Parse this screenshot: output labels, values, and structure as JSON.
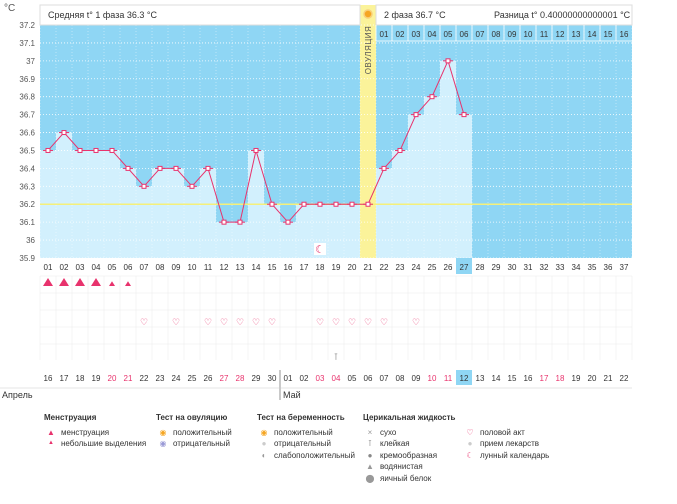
{
  "chart_data": {
    "type": "line",
    "ylabel": "°C",
    "ylim": [
      35.9,
      37.2
    ],
    "yticks": [
      "37.2",
      "37.1",
      "37",
      "36.9",
      "36.8",
      "36.7",
      "36.6",
      "36.5",
      "36.4",
      "36.3",
      "36.2",
      "36.1",
      "36",
      "35.9"
    ],
    "cycle_days": [
      "01",
      "02",
      "03",
      "04",
      "05",
      "06",
      "07",
      "08",
      "09",
      "10",
      "11",
      "12",
      "13",
      "14",
      "15",
      "16",
      "17",
      "18",
      "19",
      "20",
      "21",
      "22",
      "23",
      "24",
      "25",
      "26",
      "27",
      "28",
      "29",
      "30",
      "31",
      "32",
      "33",
      "34",
      "35",
      "36",
      "37"
    ],
    "temperatures": [
      36.5,
      36.6,
      36.5,
      36.5,
      36.5,
      36.4,
      36.3,
      36.4,
      36.4,
      36.3,
      36.4,
      36.1,
      36.1,
      36.5,
      36.2,
      36.1,
      36.2,
      36.2,
      36.2,
      36.2,
      36.2,
      36.4,
      36.5,
      36.7,
      36.8,
      37.0,
      36.7
    ],
    "coverline": 36.2,
    "current_day_index": 26,
    "ovulation_day_index": 20,
    "ovulation_label": "ОВУЛЯЦИЯ",
    "phase1_text": "Средняя t° 1 фаза 36.3 °C",
    "phase2_text": "2 фаза 36.7 °C",
    "diff_text": "Разница t° 0.40000000000001 °C",
    "phase2_days": [
      "01",
      "02",
      "03",
      "04",
      "05",
      "06",
      "07",
      "08",
      "09",
      "10",
      "11",
      "12",
      "13",
      "14",
      "15",
      "16"
    ],
    "calendar_dates": [
      "16",
      "17",
      "18",
      "19",
      "20",
      "21",
      "22",
      "23",
      "24",
      "25",
      "26",
      "27",
      "28",
      "29",
      "30",
      "01",
      "02",
      "03",
      "04",
      "05",
      "06",
      "07",
      "08",
      "09",
      "10",
      "11",
      "12",
      "13",
      "14",
      "15",
      "16",
      "17",
      "18",
      "19",
      "20",
      "21",
      "22"
    ],
    "weekend_date_indexes": [
      4,
      5,
      11,
      12,
      17,
      18,
      24,
      25,
      31,
      32
    ],
    "months": [
      {
        "label": "Апрель",
        "start_index": 0
      },
      {
        "label": "Май",
        "start_index": 15
      }
    ],
    "menstruation": [
      2,
      2,
      2,
      2,
      1,
      1
    ],
    "intercourse_indexes": [
      6,
      8,
      10,
      11,
      12,
      13,
      14,
      17,
      18,
      19,
      20,
      21,
      23
    ],
    "moon_index": 17,
    "sticky_index": 18,
    "colors": {
      "plot_bg": "#8fd6f4",
      "bar": "#d2f0fd",
      "grid": "#ffffff",
      "line": "#e8336d",
      "coverline": "#f5f07a",
      "ovulation": "#fbf39a",
      "accent": "#e8336d",
      "today": "#8fd6f4",
      "weekend": "#e8336d"
    }
  },
  "legend": {
    "menstruation": {
      "title": "Менструация",
      "items": [
        {
          "icon": "blood-drop-icon",
          "label": "менструация"
        },
        {
          "icon": "small-drop-icon",
          "label": "небольшие выделения"
        }
      ]
    },
    "ovulation_test": {
      "title": "Тест на овуляцию",
      "items": [
        {
          "icon": "positive-test-icon",
          "label": "положительный"
        },
        {
          "icon": "negative-test-icon",
          "label": "отрицательный"
        }
      ]
    },
    "pregnancy_test": {
      "title": "Тест на беременность",
      "items": [
        {
          "icon": "positive-pregnancy-icon",
          "label": "положительный"
        },
        {
          "icon": "negative-pregnancy-icon",
          "label": "отрицательный"
        },
        {
          "icon": "weak-pregnancy-icon",
          "label": "слабоположительный"
        }
      ]
    },
    "cervical_fluid": {
      "title": "Церикальная жидкость",
      "items": [
        {
          "icon": "cross-icon",
          "label": "сухо"
        },
        {
          "icon": "sticky-icon",
          "label": "клейкая"
        },
        {
          "icon": "creamy-icon",
          "label": "кремообразная"
        },
        {
          "icon": "watery-icon",
          "label": "водянистая"
        },
        {
          "icon": "egg-white-icon",
          "label": "яичный белок"
        }
      ]
    },
    "other": {
      "items": [
        {
          "icon": "heart-icon",
          "label": "половой акт"
        },
        {
          "icon": "pill-icon",
          "label": "прием лекарств"
        },
        {
          "icon": "moon-icon",
          "label": "лунный календарь"
        }
      ]
    }
  }
}
